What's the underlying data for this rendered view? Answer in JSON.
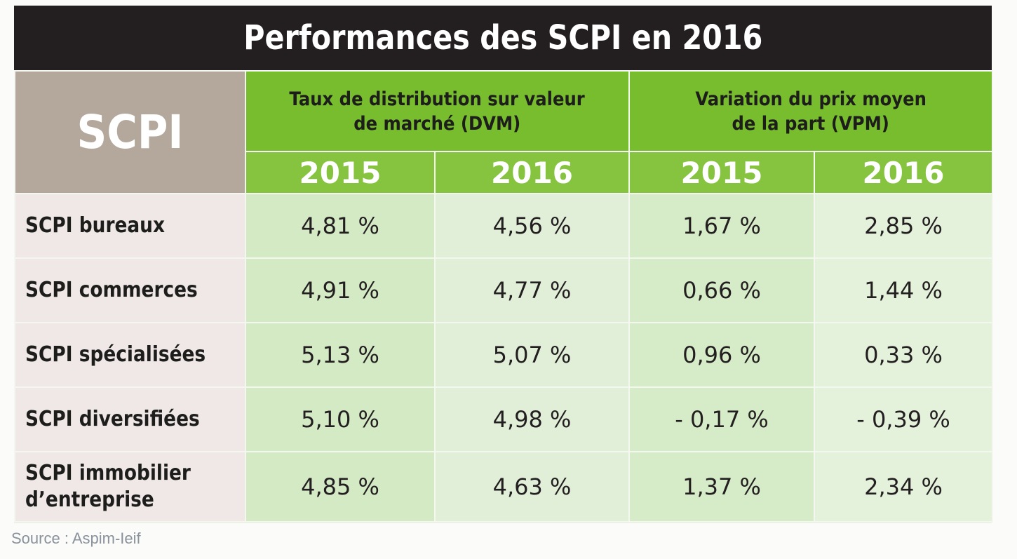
{
  "title": "Performances des SCPI en 2016",
  "corner_label": "SCPI",
  "source": "Source : Aspim-Ieif",
  "colors": {
    "title_background": "#231f20",
    "header_green": "#77bd2e",
    "year_green": "#86c43f",
    "corner_taupe": "#b4a89c",
    "row_label_background": "#efe8e7",
    "cell_light_green": "#d3eac5"
  },
  "chart_data": {
    "type": "table",
    "title": "Performances des SCPI en 2016",
    "groups": [
      {
        "label": "Taux de distribution sur valeur de marché (DVM)",
        "line1": "Taux de distribution sur valeur",
        "line2": "de marché (DVM)",
        "years": [
          "2015",
          "2016"
        ]
      },
      {
        "label": "Variation du prix moyen de la part (VPM)",
        "line1": "Variation du prix moyen",
        "line2": "de la part (VPM)",
        "years": [
          "2015",
          "2016"
        ]
      }
    ],
    "rows": [
      {
        "label": "SCPI bureaux",
        "label_lines": [
          "SCPI bureaux"
        ],
        "values": [
          "4,81 %",
          "4,56 %",
          "1,67 %",
          "2,85 %"
        ]
      },
      {
        "label": "SCPI commerces",
        "label_lines": [
          "SCPI commerces"
        ],
        "values": [
          "4,91 %",
          "4,77 %",
          "0,66 %",
          "1,44 %"
        ]
      },
      {
        "label": "SCPI spécialisées",
        "label_lines": [
          "SCPI spécialisées"
        ],
        "values": [
          "5,13 %",
          "5,07 %",
          "0,96 %",
          "0,33 %"
        ]
      },
      {
        "label": "SCPI diversifiées",
        "label_lines": [
          "SCPI diversifiées"
        ],
        "values": [
          "5,10 %",
          "4,98 %",
          "- 0,17 %",
          "- 0,39 %"
        ]
      },
      {
        "label": "SCPI immobilier d’entreprise",
        "label_lines": [
          "SCPI immobilier",
          "d’entreprise"
        ],
        "values": [
          "4,85 %",
          "4,63 %",
          "1,37 %",
          "2,34 %"
        ]
      }
    ]
  }
}
